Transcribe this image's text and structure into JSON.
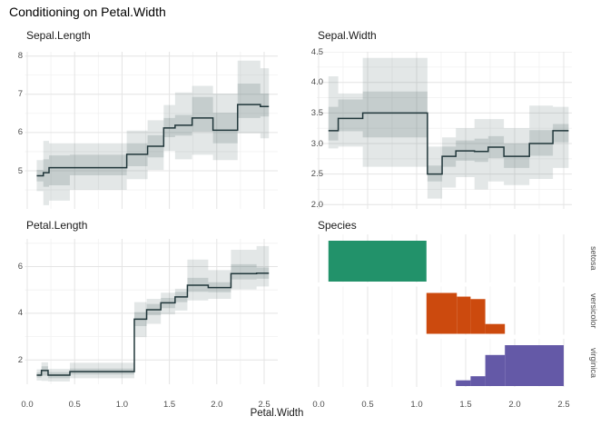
{
  "title": "Conditioning on Petal.Width",
  "colors": {
    "background": "#ffffff",
    "grid_major": "#e4e4e4",
    "grid_minor": "#f1f1f1",
    "step_line": "#20363a",
    "band_outer": "rgba(70,95,95,0.15)",
    "band_inner": "rgba(70,95,95,0.19)",
    "tick_text": "#4d4d4d",
    "setosa": "#22926a",
    "versicolor": "#cc4a0e",
    "virginica": "#6459a7"
  },
  "chart_data": {
    "type": "step-line with confidence bands (3 numeric panels) + conditional histograms by species (1 panel)",
    "x": {
      "label": "Petal.Width",
      "tick_labels": [
        "0.0",
        "0.5",
        "1.0",
        "1.5",
        "2.0",
        "2.5"
      ],
      "tick_values": [
        0,
        0.5,
        1,
        1.5,
        2,
        2.5
      ],
      "minor_values": [
        0.25,
        0.75,
        1.25,
        1.75,
        2.25
      ],
      "range": [
        0.1,
        2.5
      ]
    },
    "segment_format": [
      "x0",
      "x1",
      "y",
      "inner_lo",
      "inner_hi",
      "outer_lo",
      "outer_hi"
    ],
    "panels": [
      {
        "title": "Sepal.Length",
        "kind": "step",
        "y_tick_labels": [
          "5",
          "6",
          "7",
          "8"
        ],
        "y_tick_values": [
          5,
          6,
          7,
          8
        ],
        "y_minor_values": [
          4.5,
          5.5,
          6.5,
          7.5
        ],
        "ylim": [
          4.0,
          8.1
        ],
        "segments": [
          [
            0.1,
            0.17,
            4.87,
            4.72,
            5.02,
            4.47,
            5.28
          ],
          [
            0.17,
            0.23,
            4.95,
            4.58,
            5.3,
            4.1,
            5.78
          ],
          [
            0.23,
            0.45,
            5.08,
            4.62,
            5.4,
            4.22,
            5.72
          ],
          [
            0.45,
            1.05,
            5.08,
            4.88,
            5.42,
            4.5,
            5.72
          ],
          [
            1.05,
            1.27,
            5.43,
            5.12,
            5.72,
            4.78,
            6.05
          ],
          [
            1.27,
            1.44,
            5.64,
            5.35,
            5.93,
            5.02,
            6.32
          ],
          [
            1.44,
            1.56,
            6.12,
            5.88,
            6.38,
            5.52,
            6.72
          ],
          [
            1.56,
            1.74,
            6.19,
            5.92,
            6.46,
            5.3,
            7.05
          ],
          [
            1.74,
            1.96,
            6.38,
            6.02,
            6.93,
            5.42,
            7.22
          ],
          [
            1.96,
            2.22,
            6.06,
            5.72,
            6.52,
            5.28,
            7.02
          ],
          [
            2.22,
            2.46,
            6.73,
            6.38,
            7.28,
            5.98,
            7.88
          ],
          [
            2.46,
            2.55,
            6.68,
            6.42,
            7.02,
            5.85,
            7.68
          ]
        ]
      },
      {
        "title": "Sepal.Width",
        "kind": "step",
        "y_tick_labels": [
          "2.0",
          "2.5",
          "3.0",
          "3.5",
          "4.0",
          "4.5"
        ],
        "y_tick_values": [
          2,
          2.5,
          3,
          3.5,
          4,
          4.5
        ],
        "y_minor_values": [
          2.25,
          2.75,
          3.25,
          3.75,
          4.25
        ],
        "ylim": [
          1.95,
          4.55
        ],
        "segments": [
          [
            0.1,
            0.2,
            3.21,
            3.05,
            3.6,
            2.92,
            4.1
          ],
          [
            0.2,
            0.45,
            3.41,
            3.2,
            3.72,
            2.95,
            3.82
          ],
          [
            0.45,
            1.11,
            3.5,
            3.1,
            3.85,
            2.62,
            4.4
          ],
          [
            1.11,
            1.26,
            2.5,
            2.38,
            2.64,
            2.1,
            2.95
          ],
          [
            1.26,
            1.4,
            2.79,
            2.62,
            2.95,
            2.28,
            3.1
          ],
          [
            1.4,
            1.59,
            2.88,
            2.72,
            3.05,
            2.45,
            3.25
          ],
          [
            1.59,
            1.73,
            2.87,
            2.7,
            3.08,
            2.25,
            3.4
          ],
          [
            1.73,
            1.89,
            2.94,
            2.76,
            3.12,
            2.38,
            3.4
          ],
          [
            1.89,
            2.15,
            2.79,
            2.6,
            3.0,
            2.32,
            3.25
          ],
          [
            2.15,
            2.39,
            3.0,
            2.8,
            3.22,
            2.42,
            3.62
          ],
          [
            2.39,
            2.55,
            3.21,
            3.02,
            3.32,
            2.6,
            3.6
          ]
        ]
      },
      {
        "title": "Petal.Length",
        "kind": "step",
        "y_tick_labels": [
          "2",
          "4",
          "6"
        ],
        "y_tick_values": [
          2,
          4,
          6
        ],
        "y_minor_values": [
          3,
          5,
          7
        ],
        "ylim": [
          0.95,
          7.2
        ],
        "segments": [
          [
            0.1,
            0.15,
            1.35,
            1.25,
            1.46,
            1.12,
            1.6
          ],
          [
            0.15,
            0.22,
            1.55,
            1.33,
            1.73,
            1.1,
            1.9
          ],
          [
            0.22,
            0.45,
            1.35,
            1.22,
            1.48,
            1.08,
            1.62
          ],
          [
            0.45,
            1.13,
            1.5,
            1.38,
            1.63,
            1.22,
            1.88
          ],
          [
            1.13,
            1.26,
            3.75,
            3.45,
            4.05,
            2.98,
            4.48
          ],
          [
            1.26,
            1.41,
            4.15,
            3.92,
            4.4,
            3.55,
            4.62
          ],
          [
            1.41,
            1.56,
            4.45,
            4.22,
            4.66,
            3.95,
            4.88
          ],
          [
            1.56,
            1.69,
            4.7,
            4.48,
            4.92,
            4.12,
            5.05
          ],
          [
            1.69,
            1.91,
            5.2,
            4.92,
            5.52,
            4.55,
            6.3
          ],
          [
            1.91,
            2.15,
            5.1,
            4.9,
            5.33,
            4.62,
            5.85
          ],
          [
            2.15,
            2.42,
            5.7,
            5.45,
            6.1,
            5.02,
            6.72
          ],
          [
            2.42,
            2.55,
            5.72,
            5.48,
            5.96,
            5.15,
            6.88
          ]
        ]
      },
      {
        "title": "Species",
        "kind": "histogram",
        "bar_format": [
          "x0",
          "x1",
          "height_fraction"
        ],
        "strips": [
          {
            "label": "setosa",
            "color": "#22926a",
            "bars": [
              [
                0.1,
                1.1,
                1.0
              ]
            ]
          },
          {
            "label": "versicolor",
            "color": "#cc4a0e",
            "bars": [
              [
                1.1,
                1.41,
                1.0
              ],
              [
                1.41,
                1.55,
                0.91
              ],
              [
                1.55,
                1.7,
                0.85
              ],
              [
                1.7,
                1.9,
                0.24
              ]
            ]
          },
          {
            "label": "virginica",
            "color": "#6459a7",
            "bars": [
              [
                1.4,
                1.55,
                0.14
              ],
              [
                1.55,
                1.7,
                0.24
              ],
              [
                1.7,
                1.9,
                0.76
              ],
              [
                1.9,
                2.5,
                1.0
              ]
            ]
          }
        ]
      }
    ]
  }
}
